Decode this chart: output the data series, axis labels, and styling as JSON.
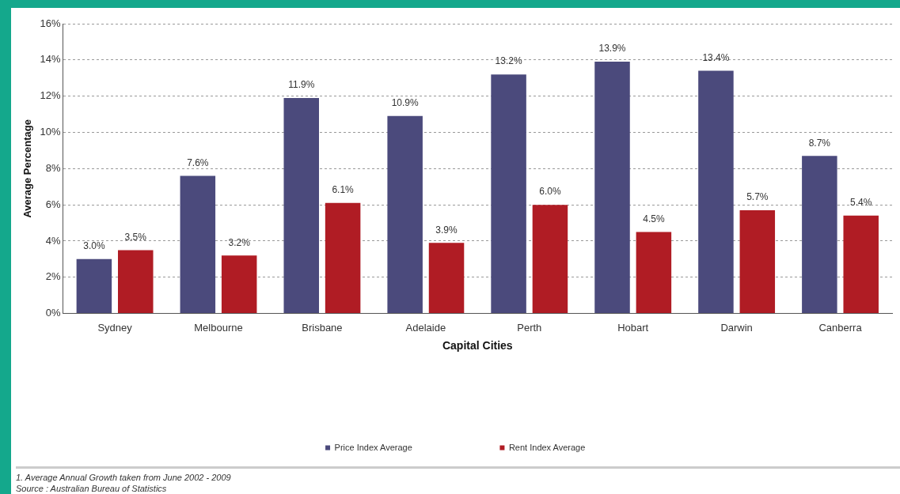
{
  "chart_data": {
    "type": "bar",
    "xlabel": "Capital Cities",
    "ylabel": "Average Percentage",
    "categories": [
      "Sydney",
      "Melbourne",
      "Brisbane",
      "Adelaide",
      "Perth",
      "Hobart",
      "Darwin",
      "Canberra"
    ],
    "series": [
      {
        "name": "Price Index Average",
        "color": "#4b4a7c",
        "values": [
          3.0,
          7.6,
          11.9,
          10.9,
          13.2,
          13.9,
          13.4,
          8.7
        ],
        "value_labels": [
          "3.0%",
          "7.6%",
          "11.9%",
          "10.9%",
          "13.2%",
          "13.9%",
          "13.4%",
          "8.7%"
        ]
      },
      {
        "name": "Rent Index Average",
        "color": "#b01c24",
        "values": [
          3.5,
          3.2,
          6.1,
          3.9,
          6.0,
          4.5,
          5.7,
          5.4
        ],
        "value_labels": [
          "3.5%",
          "3.2%",
          "6.1%",
          "3.9%",
          "6.0%",
          "4.5%",
          "5.7%",
          "5.4%"
        ]
      }
    ],
    "ylim": [
      0,
      16
    ],
    "yticks": [
      {
        "value": 0,
        "label": "0%"
      },
      {
        "value": 2,
        "label": "2%"
      },
      {
        "value": 4,
        "label": "4%"
      },
      {
        "value": 6,
        "label": "6%"
      },
      {
        "value": 8,
        "label": "8%"
      },
      {
        "value": 10,
        "label": "10%"
      },
      {
        "value": 12,
        "label": "12%"
      },
      {
        "value": 14,
        "label": "14%"
      },
      {
        "value": 16,
        "label": "16%"
      }
    ],
    "grid": "y",
    "legend": "bottom",
    "annotations": [
      "1.  Average Annual Growth taken from June 2002 - 2009",
      "Source : Australian Bureau of Statistics"
    ]
  }
}
